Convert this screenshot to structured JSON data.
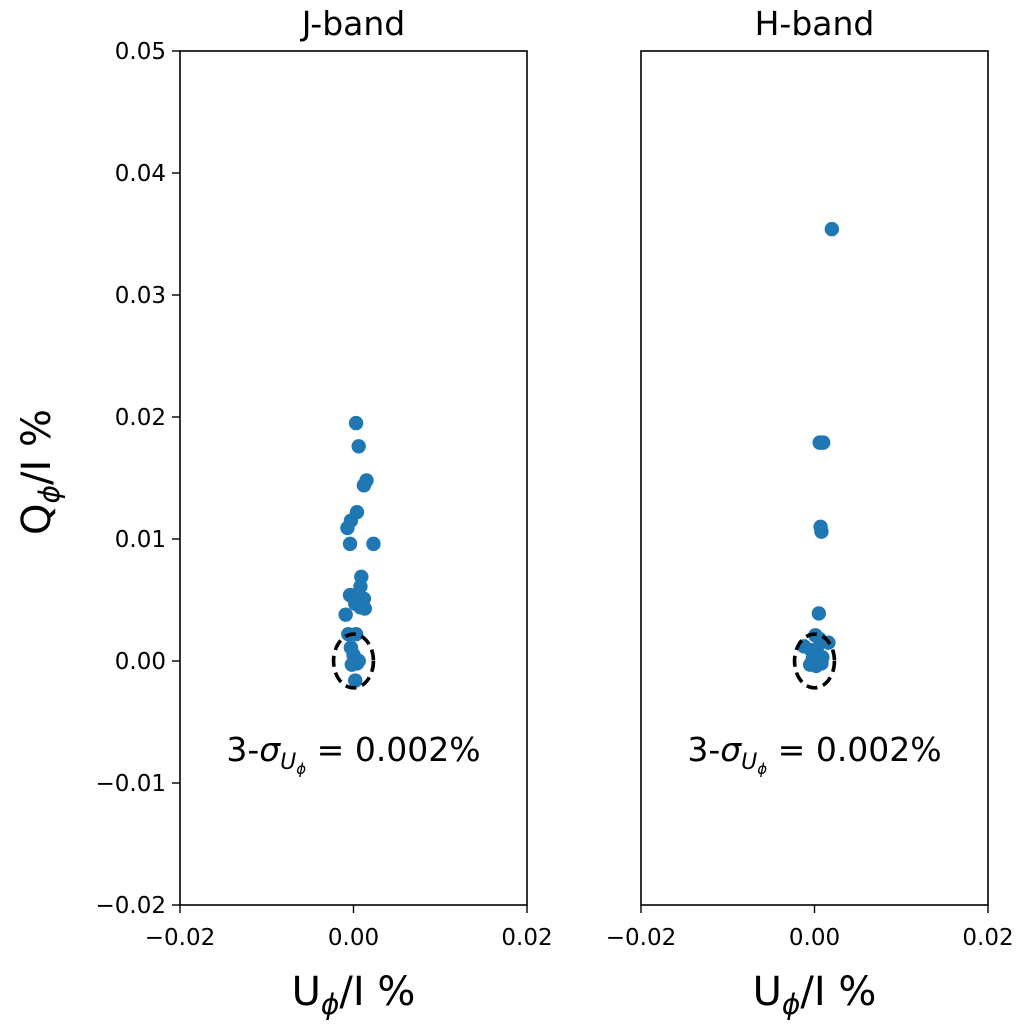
{
  "chart_data": [
    {
      "type": "scatter",
      "title": "J-band",
      "xlabel": "Uϕ/I %",
      "ylabel": "Qϕ/I %",
      "xlim": [
        -0.02,
        0.02
      ],
      "ylim": [
        -0.02,
        0.05
      ],
      "xticks": [
        "−0.02",
        "0.00",
        "0.02"
      ],
      "yticks": [
        "−0.02",
        "−0.01",
        "0.00",
        "0.01",
        "0.02",
        "0.03",
        "0.04",
        "0.05"
      ],
      "grid": false,
      "color": "#1f77b4",
      "annotation": "3-σUϕ = 0.002%",
      "sigma_ellipse": {
        "cx": 0.0,
        "cy": 0.0,
        "half_width": 0.0023,
        "half_height": 0.0022
      },
      "points": [
        [
          0.0003,
          0.0195
        ],
        [
          0.0006,
          0.0176
        ],
        [
          0.0015,
          0.0148
        ],
        [
          0.0012,
          0.0144
        ],
        [
          0.0004,
          0.0122
        ],
        [
          -0.0003,
          0.0115
        ],
        [
          -0.0007,
          0.0109
        ],
        [
          -0.0004,
          0.0096
        ],
        [
          0.0023,
          0.0096
        ],
        [
          0.0009,
          0.0069
        ],
        [
          0.0008,
          0.0061
        ],
        [
          0.0005,
          0.0055
        ],
        [
          -0.0004,
          0.0054
        ],
        [
          0.0012,
          0.0051
        ],
        [
          0.0002,
          0.0047
        ],
        [
          0.0008,
          0.0044
        ],
        [
          0.0013,
          0.0043
        ],
        [
          -0.0009,
          0.0038
        ],
        [
          -0.0006,
          0.0022
        ],
        [
          0.0003,
          0.0022
        ],
        [
          -0.0003,
          0.0011
        ],
        [
          0.0,
          0.0005
        ],
        [
          0.0006,
          0.0
        ],
        [
          0.0004,
          -0.0002
        ],
        [
          -0.0002,
          -0.0003
        ],
        [
          0.0002,
          -0.0016
        ]
      ]
    },
    {
      "type": "scatter",
      "title": "H-band",
      "xlabel": "Uϕ/I %",
      "ylabel": "",
      "xlim": [
        -0.02,
        0.02
      ],
      "ylim": [
        -0.02,
        0.05
      ],
      "xticks": [
        "−0.02",
        "0.00",
        "0.02"
      ],
      "yticks": [],
      "grid": false,
      "color": "#1f77b4",
      "annotation": "3-σUϕ = 0.002%",
      "sigma_ellipse": {
        "cx": 0.0,
        "cy": 0.0,
        "half_width": 0.0023,
        "half_height": 0.0022
      },
      "points": [
        [
          0.002,
          0.0354
        ],
        [
          0.0006,
          0.0179
        ],
        [
          0.001,
          0.0179
        ],
        [
          0.0007,
          0.011
        ],
        [
          0.0008,
          0.0106
        ],
        [
          0.0005,
          0.0039
        ],
        [
          0.0001,
          0.0021
        ],
        [
          0.0006,
          0.0018
        ],
        [
          0.0016,
          0.0015
        ],
        [
          -0.0012,
          0.0012
        ],
        [
          -0.0004,
          0.0009
        ],
        [
          0.0003,
          0.0008
        ],
        [
          0.0001,
          0.0005
        ],
        [
          0.0009,
          0.0003
        ],
        [
          -0.0002,
          0.0002
        ],
        [
          0.0004,
          0.0
        ],
        [
          0.0008,
          -0.0002
        ],
        [
          -0.0005,
          -0.0003
        ],
        [
          0.0002,
          -0.0004
        ]
      ]
    }
  ]
}
